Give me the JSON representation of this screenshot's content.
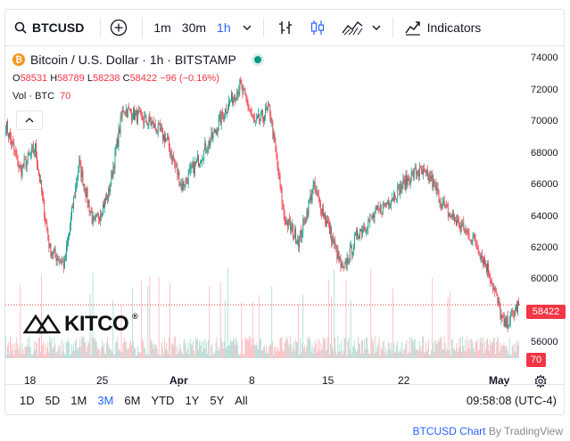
{
  "toolbar": {
    "symbol": "BTCUSD",
    "intervals": [
      "1m",
      "30m",
      "1h"
    ],
    "active_interval": "1h",
    "indicators_label": "Indicators"
  },
  "legend": {
    "title": "Bitcoin / U.S. Dollar · 1h · BITSTAMP",
    "ohlc": {
      "o_label": "O",
      "o": "58531",
      "h_label": "H",
      "h": "58789",
      "l_label": "L",
      "l": "58238",
      "c_label": "C",
      "c": "58422",
      "change": "−96 (−0.16%)"
    },
    "volume_label": "Vol · BTC",
    "volume_value": "70"
  },
  "price_axis": [
    "74000",
    "72000",
    "70000",
    "68000",
    "66000",
    "64000",
    "62000",
    "60000",
    "56000"
  ],
  "last_price": "58422",
  "last_volume": "70",
  "time_axis": [
    "18",
    "25",
    "Apr",
    "8",
    "15",
    "22",
    "May"
  ],
  "watermark": "KITCO",
  "ranges": [
    "1D",
    "5D",
    "1M",
    "3M",
    "6M",
    "YTD",
    "1Y",
    "5Y",
    "All"
  ],
  "active_range": "3M",
  "clock": "09:58:08 (UTC-4)",
  "footer": {
    "link": "BTCUSD Chart",
    "by": "By TradingView"
  },
  "colors": {
    "up": "#089981",
    "down": "#f23645",
    "accent": "#2962ff"
  },
  "chart_data": {
    "type": "candlestick",
    "series_anchor_prices": [
      {
        "date": "Mar 14",
        "price": 70000
      },
      {
        "date": "Mar 16",
        "price": 67000
      },
      {
        "date": "Mar 17",
        "price": 68500
      },
      {
        "date": "Mar 19",
        "price": 62000
      },
      {
        "date": "Mar 20",
        "price": 61000
      },
      {
        "date": "Mar 21",
        "price": 67500
      },
      {
        "date": "Mar 22",
        "price": 63500
      },
      {
        "date": "Mar 24",
        "price": 65500
      },
      {
        "date": "Mar 26",
        "price": 71000
      },
      {
        "date": "Mar 28",
        "price": 70500
      },
      {
        "date": "Mar 31",
        "price": 70000
      },
      {
        "date": "Apr 1",
        "price": 69000
      },
      {
        "date": "Apr 3",
        "price": 66000
      },
      {
        "date": "Apr 5",
        "price": 67500
      },
      {
        "date": "Apr 7",
        "price": 69000
      },
      {
        "date": "Apr 8",
        "price": 71000
      },
      {
        "date": "Apr 9",
        "price": 72500
      },
      {
        "date": "Apr 10",
        "price": 70000
      },
      {
        "date": "Apr 12",
        "price": 71000
      },
      {
        "date": "Apr 13",
        "price": 64000
      },
      {
        "date": "Apr 14",
        "price": 62500
      },
      {
        "date": "Apr 15",
        "price": 66000
      },
      {
        "date": "Apr 16",
        "price": 63500
      },
      {
        "date": "Apr 17",
        "price": 60500
      },
      {
        "date": "Apr 18",
        "price": 63000
      },
      {
        "date": "Apr 19",
        "price": 64000
      },
      {
        "date": "Apr 20",
        "price": 65000
      },
      {
        "date": "Apr 22",
        "price": 66000
      },
      {
        "date": "Apr 23",
        "price": 67000
      },
      {
        "date": "Apr 24",
        "price": 66500
      },
      {
        "date": "Apr 25",
        "price": 64500
      },
      {
        "date": "Apr 27",
        "price": 63500
      },
      {
        "date": "Apr 29",
        "price": 62500
      },
      {
        "date": "Apr 30",
        "price": 60500
      },
      {
        "date": "May 1",
        "price": 57000
      },
      {
        "date": "May 2",
        "price": 58422
      }
    ],
    "y_range": [
      55000,
      75000
    ],
    "last": 58422
  }
}
